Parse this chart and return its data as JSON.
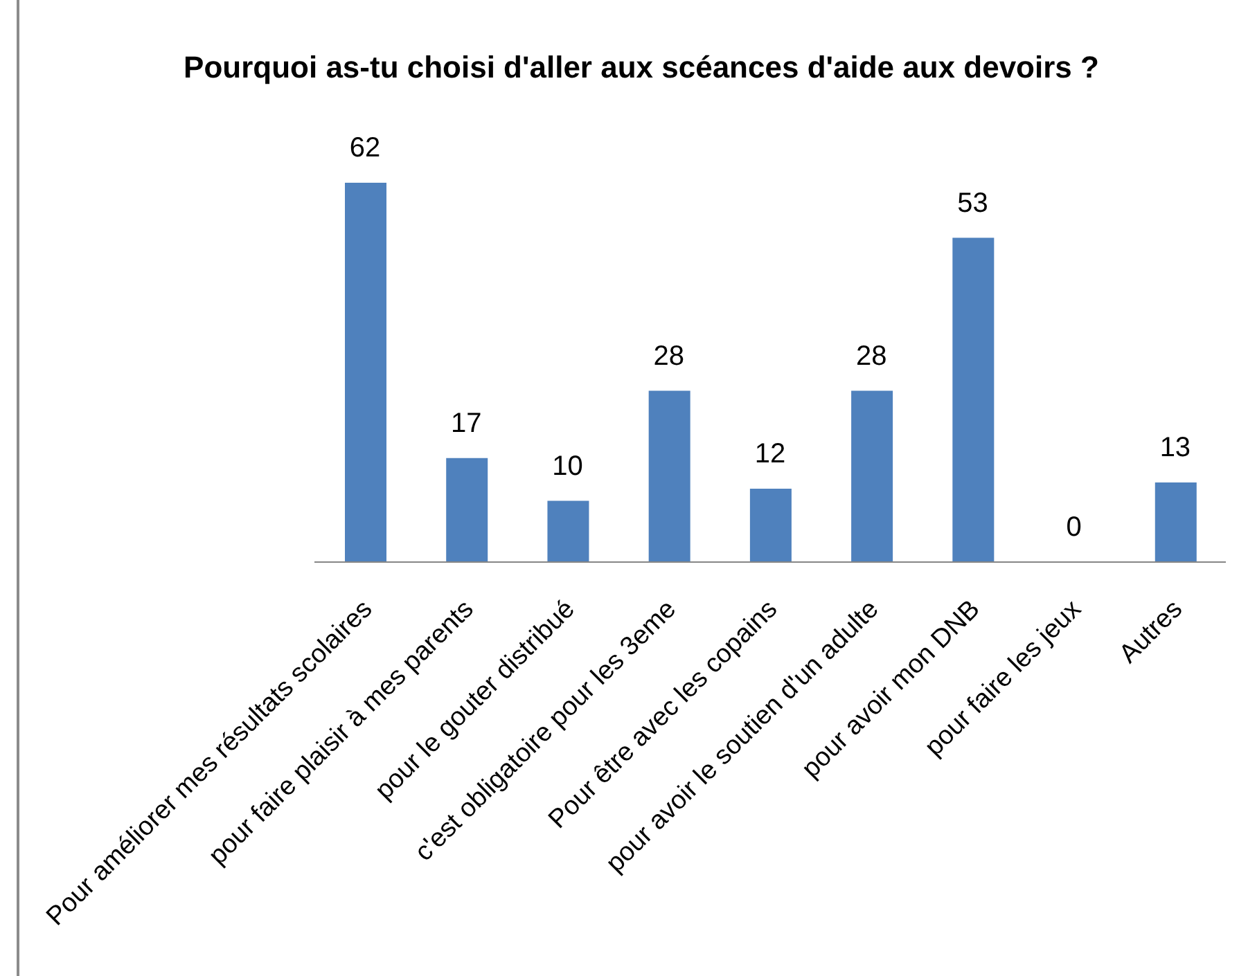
{
  "chart_data": {
    "type": "bar",
    "title": "Pourquoi as-tu choisi d'aller aux scéances d'aide aux devoirs ?",
    "categories": [
      "Pour améliorer mes résultats scolaires",
      "pour faire plaisir à mes parents",
      "pour le gouter distribué",
      "c'est obligatoire pour les 3eme",
      "Pour être avec les copains",
      "pour avoir le soutien d'un adulte",
      "pour avoir mon DNB",
      "pour faire les jeux",
      "Autres"
    ],
    "values": [
      62,
      17,
      10,
      28,
      12,
      28,
      53,
      0,
      13
    ],
    "color": "#4f81bd",
    "data_labels": true
  }
}
